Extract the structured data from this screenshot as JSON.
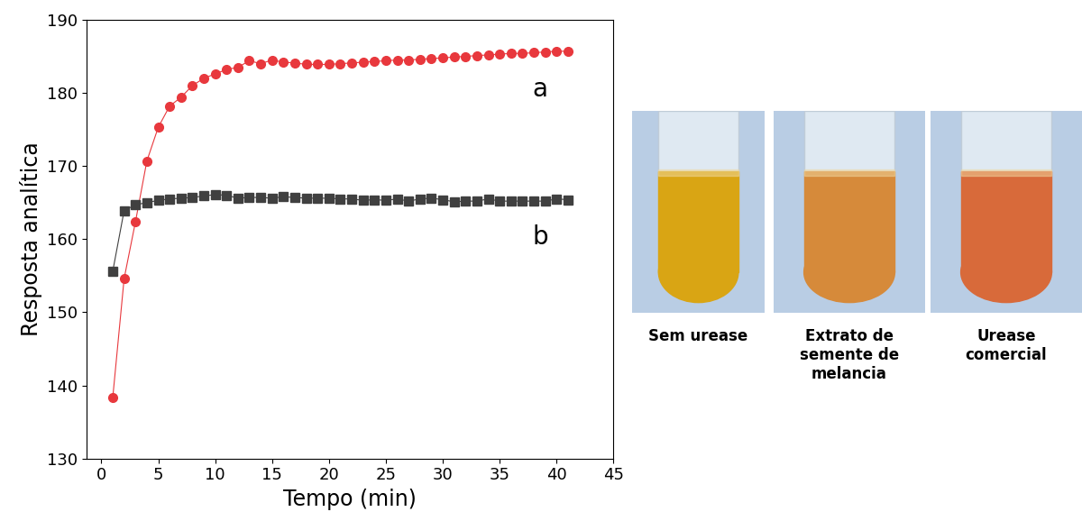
{
  "chart_data": {
    "type": "line",
    "x_label": "Tempo (min)",
    "y_label": "Resposta analítica",
    "x": [
      1,
      2,
      3,
      4,
      5,
      6,
      7,
      8,
      9,
      10,
      11,
      12,
      13,
      14,
      15,
      16,
      17,
      18,
      19,
      20,
      21,
      22,
      23,
      24,
      25,
      26,
      27,
      28,
      29,
      30,
      31,
      32,
      33,
      34,
      35,
      36,
      37,
      38,
      39,
      40,
      41
    ],
    "series": [
      {
        "name": "a",
        "color": "#e8383d",
        "marker": "o",
        "line_style": "solid",
        "values": [
          138.3,
          154.6,
          162.4,
          170.7,
          175.3,
          178.2,
          179.4,
          181.0,
          182.0,
          182.6,
          183.2,
          183.5,
          184.4,
          184.0,
          184.5,
          184.2,
          184.1,
          183.9,
          183.9,
          183.9,
          184.0,
          184.1,
          184.2,
          184.3,
          184.4,
          184.5,
          184.5,
          184.6,
          184.7,
          184.8,
          184.9,
          185.0,
          185.1,
          185.2,
          185.3,
          185.4,
          185.4,
          185.5,
          185.6,
          185.7,
          185.7
        ]
      },
      {
        "name": "b",
        "color": "#404040",
        "marker": "s",
        "line_style": "solid",
        "values": [
          155.6,
          163.9,
          164.7,
          165.0,
          165.3,
          165.5,
          165.6,
          165.7,
          165.9,
          166.1,
          166.0,
          165.6,
          165.7,
          165.7,
          165.6,
          165.8,
          165.7,
          165.6,
          165.6,
          165.6,
          165.5,
          165.5,
          165.3,
          165.4,
          165.3,
          165.5,
          165.2,
          165.5,
          165.6,
          165.4,
          165.1,
          165.2,
          165.2,
          165.5,
          165.2,
          165.2,
          165.2,
          165.2,
          165.2,
          165.5,
          165.4
        ]
      }
    ],
    "xlim": [
      -1.3,
      45
    ],
    "xticks": [
      0,
      5,
      10,
      15,
      20,
      25,
      30,
      35,
      40,
      45
    ],
    "ylim": [
      130,
      190
    ],
    "yticks": [
      130,
      140,
      150,
      160,
      170,
      180,
      190
    ],
    "grid": false
  },
  "photos": [
    {
      "caption": "Sem urease",
      "color": "#d9a514"
    },
    {
      "caption": "Extrato de semente de melancia",
      "color": "#d68a3a"
    },
    {
      "caption": "Urease comercial",
      "color": "#d86a3a"
    }
  ]
}
